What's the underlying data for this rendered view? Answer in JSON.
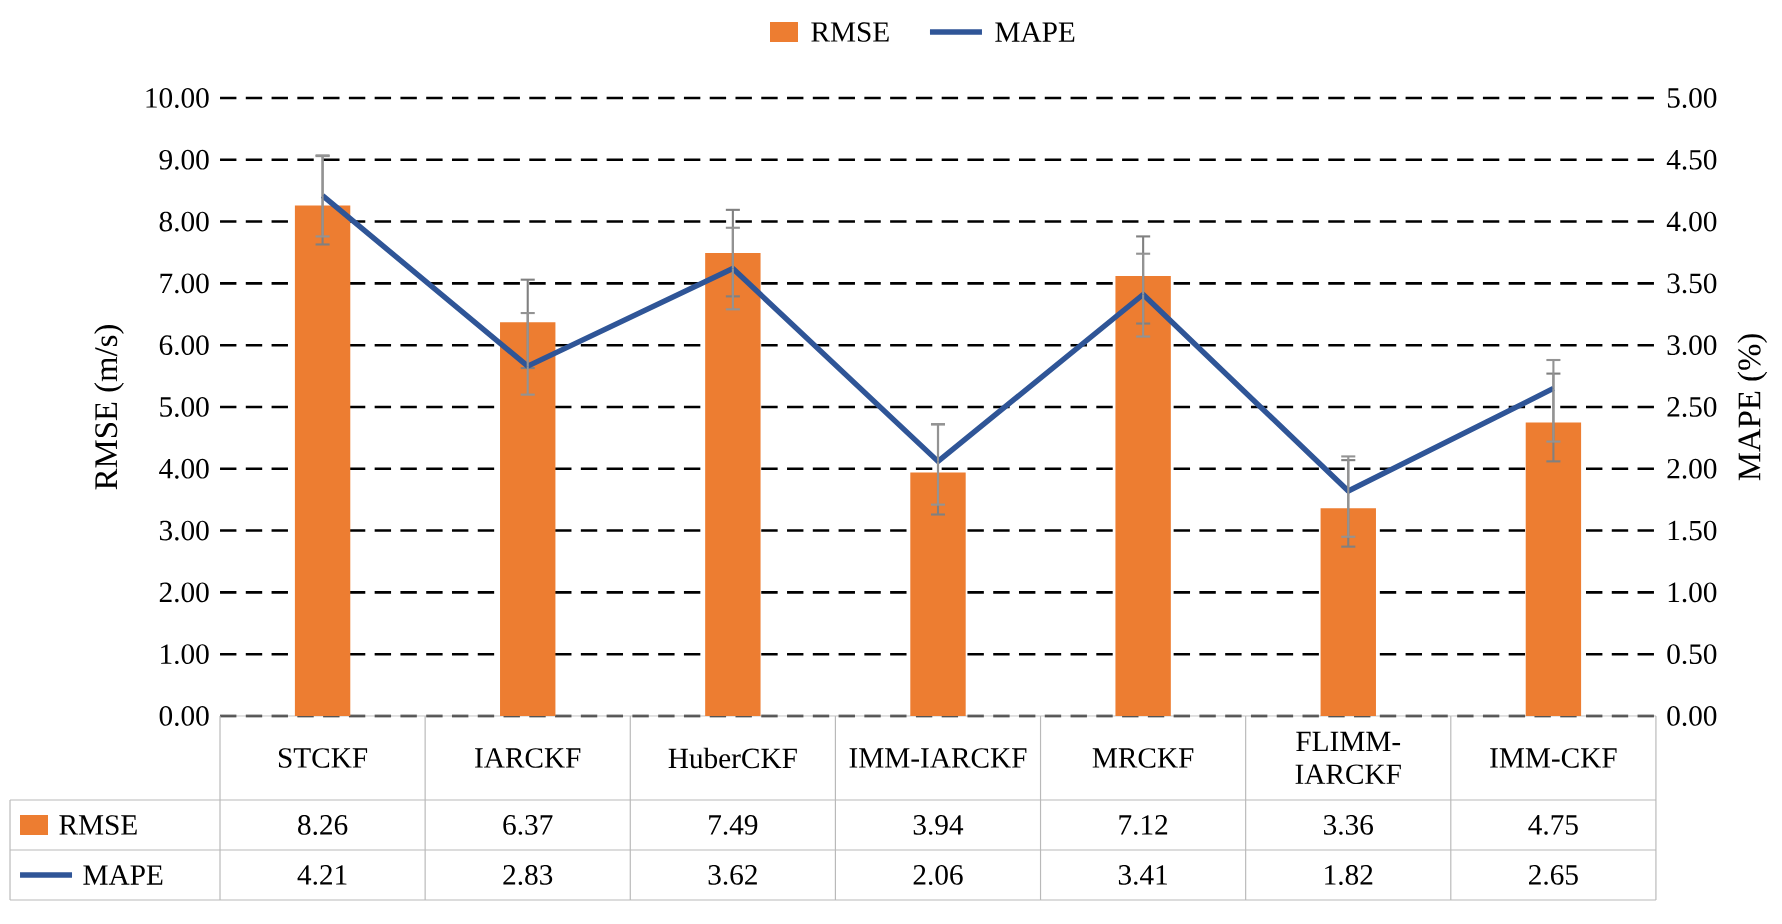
{
  "chart_data": {
    "type": "bar",
    "categories": [
      "STCKF",
      "IARCKF",
      "HuberCKF",
      "IMM-IARCKF",
      "MRCKF",
      "FLIMM-IARCKF",
      "IMM-CKF"
    ],
    "series": [
      {
        "name": "RMSE",
        "color": "#ed7d31",
        "values": [
          8.26,
          6.37,
          7.49,
          3.94,
          7.12,
          3.36,
          4.75
        ],
        "errors": [
          [
            7.63,
            9.07
          ],
          [
            5.63,
            7.06
          ],
          [
            6.79,
            8.19
          ],
          [
            3.26,
            4.72
          ],
          [
            6.35,
            7.76
          ],
          [
            2.74,
            4.14
          ],
          [
            4.12,
            5.54
          ]
        ]
      },
      {
        "name": "MAPE",
        "type": "line",
        "axis": "y2",
        "color": "#2f5597",
        "values": [
          4.21,
          2.83,
          3.62,
          2.06,
          3.41,
          1.82,
          2.65
        ],
        "errors": [
          [
            3.88,
            4.53
          ],
          [
            2.6,
            3.26
          ],
          [
            3.29,
            3.95
          ],
          [
            1.71,
            2.36
          ],
          [
            3.07,
            3.74
          ],
          [
            1.45,
            2.1
          ],
          [
            2.22,
            2.88
          ]
        ]
      }
    ],
    "ylabel": "RMSE (m/s)",
    "y2label": "MAPE (%)",
    "ylim": [
      0,
      10
    ],
    "yticks": [
      {
        "value": 0,
        "label": "0.00"
      },
      {
        "value": 1,
        "label": "1.00"
      },
      {
        "value": 2,
        "label": "2.00"
      },
      {
        "value": 3,
        "label": "3.00"
      },
      {
        "value": 4,
        "label": "4.00"
      },
      {
        "value": 5,
        "label": "5.00"
      },
      {
        "value": 6,
        "label": "6.00"
      },
      {
        "value": 7,
        "label": "7.00"
      },
      {
        "value": 8,
        "label": "8.00"
      },
      {
        "value": 9,
        "label": "9.00"
      },
      {
        "value": 10,
        "label": "10.00"
      }
    ],
    "y2lim": [
      0,
      5
    ],
    "y2ticks": [
      {
        "value": 0,
        "label": "0.00"
      },
      {
        "value": 0.5,
        "label": "0.50"
      },
      {
        "value": 1,
        "label": "1.00"
      },
      {
        "value": 1.5,
        "label": "1.50"
      },
      {
        "value": 2,
        "label": "2.00"
      },
      {
        "value": 2.5,
        "label": "2.50"
      },
      {
        "value": 3,
        "label": "3.00"
      },
      {
        "value": 3.5,
        "label": "3.50"
      },
      {
        "value": 4,
        "label": "4.00"
      },
      {
        "value": 4.5,
        "label": "4.50"
      },
      {
        "value": 5,
        "label": "5.00"
      }
    ],
    "grid": "y",
    "legend": "top",
    "data_labels": true
  }
}
